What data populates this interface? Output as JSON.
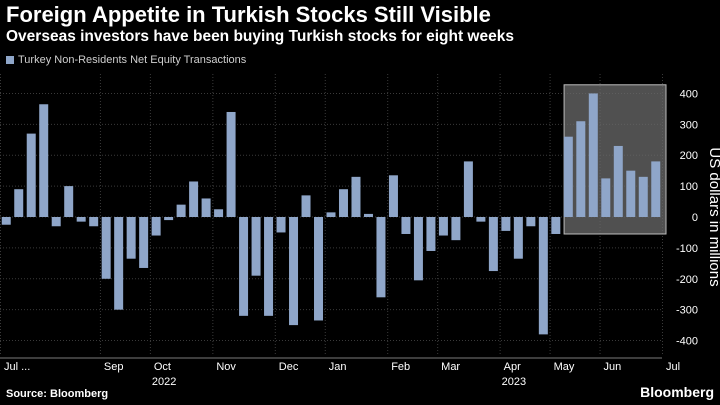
{
  "title": "Foreign Appetite in Turkish Stocks Still Visible",
  "subtitle": "Overseas investors have been buying Turkish stocks for eight weeks",
  "source": "Source: Bloomberg",
  "brand": "Bloomberg",
  "colors": {
    "background": "#000000",
    "bar": "#8fa6c9",
    "highlight_box": "#6b6b6b",
    "gridline": "#3a3a3a"
  },
  "chart_data": {
    "type": "bar",
    "series": [
      {
        "name": "Turkey Non-Residents Net Equity Transactions",
        "values": [
          -25,
          90,
          270,
          365,
          -30,
          100,
          -15,
          -30,
          -200,
          -300,
          -135,
          -165,
          -60,
          -10,
          40,
          115,
          60,
          25,
          340,
          -320,
          -190,
          -320,
          -50,
          -350,
          70,
          -335,
          15,
          90,
          130,
          10,
          -260,
          135,
          -55,
          -205,
          -110,
          -60,
          -75,
          180,
          -15,
          -175,
          -45,
          -135,
          -30,
          -380,
          -55,
          260,
          310,
          400,
          125,
          230,
          150,
          130,
          180
        ]
      }
    ],
    "ylim": [
      -450,
      450
    ],
    "yticks": [
      400,
      300,
      200,
      100,
      0,
      -100,
      -200,
      -300,
      -400
    ],
    "ylabel": "US dollars in millions",
    "x_month_labels": [
      {
        "label": "Jul ...",
        "index": 0
      },
      {
        "label": "Sep",
        "index": 8
      },
      {
        "label": "Oct",
        "index": 12
      },
      {
        "label": "Nov",
        "index": 17
      },
      {
        "label": "Dec",
        "index": 22
      },
      {
        "label": "Jan",
        "index": 26
      },
      {
        "label": "Feb",
        "index": 31
      },
      {
        "label": "Mar",
        "index": 35
      },
      {
        "label": "Apr",
        "index": 40
      },
      {
        "label": "May",
        "index": 44
      },
      {
        "label": "Jun",
        "index": 48
      },
      {
        "label": "Jul",
        "index": 53
      }
    ],
    "x_year_labels": [
      {
        "label": "2022",
        "index": 12
      },
      {
        "label": "2023",
        "index": 40
      }
    ],
    "highlight_range": {
      "from_index": 45,
      "to_index": 52
    },
    "grid": true,
    "legend_position": "top-left"
  }
}
